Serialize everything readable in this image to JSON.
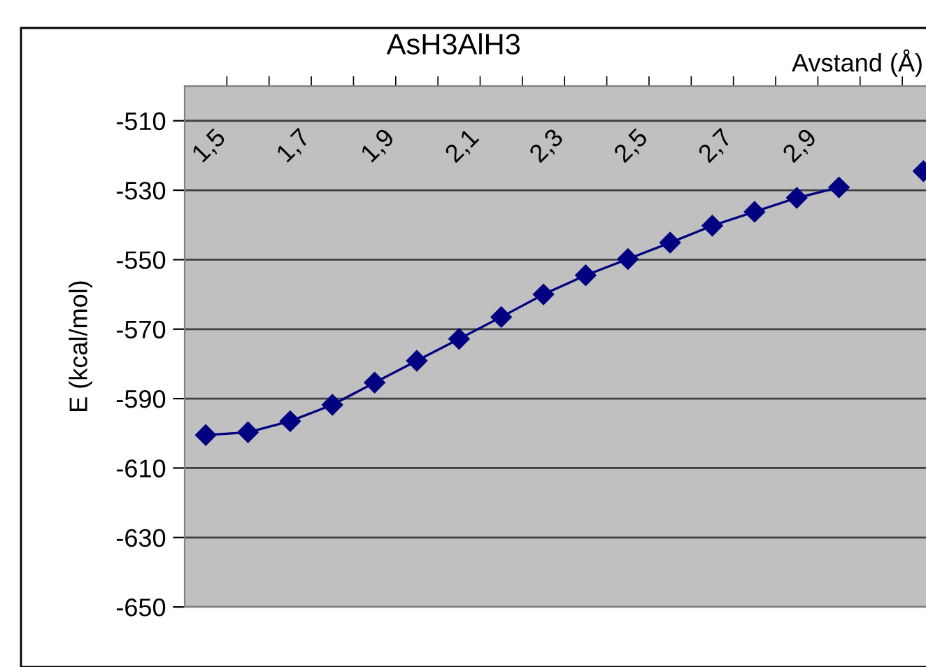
{
  "chart_data": {
    "type": "line",
    "title": "AsH3AlH3",
    "xlabel": "Avstand (Å)",
    "ylabel": "E (kcal/mol)",
    "categories": [
      "1,5",
      null,
      "1,7",
      null,
      "1,9",
      null,
      "2,1",
      null,
      "2,3",
      null,
      "2,5",
      null,
      "2,7",
      null,
      "2,9",
      null,
      null,
      null
    ],
    "series": [
      {
        "color": "#000080",
        "values": [
          -600.5,
          -599.7,
          -596.5,
          -591.8,
          -585.4,
          -579.1,
          -572.8,
          -566.5,
          -560.0,
          -554.5,
          -549.8,
          -545.1,
          -540.2,
          -536.2,
          -532.2,
          -529.2,
          null,
          -524.5
        ]
      }
    ],
    "ylim": [
      -650,
      -500
    ],
    "yticks": [
      -650,
      -630,
      -610,
      -590,
      -570,
      -550,
      -530,
      -510
    ],
    "grid": "y",
    "marker": "diamond",
    "line_style": "solid"
  }
}
